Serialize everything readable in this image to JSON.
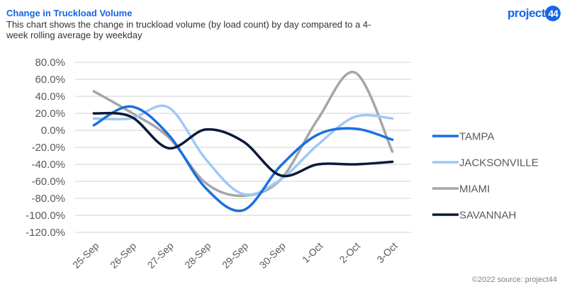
{
  "header": {
    "title": "Change in Truckload Volume",
    "subtitle": "This chart shows the change in truckload volume (by load count) by day compared to a 4-week rolling average by weekday"
  },
  "logo": {
    "text": "project",
    "badge": "44",
    "color": "#1565e6"
  },
  "footer": {
    "source": "©2022 source: project44"
  },
  "chart_data": {
    "type": "line",
    "title": "Change in Truckload Volume",
    "xlabel": "",
    "ylabel": "",
    "categories": [
      "25-Sep",
      "26-Sep",
      "27-Sep",
      "28-Sep",
      "29-Sep",
      "30-Sep",
      "1-Oct",
      "2-Oct",
      "3-Oct"
    ],
    "ylim": [
      -120,
      80
    ],
    "yticks": [
      80,
      60,
      40,
      20,
      0,
      -20,
      -40,
      -60,
      -80,
      -100,
      -120
    ],
    "ytick_labels": [
      "80.0%",
      "60.0%",
      "40.0%",
      "20.0%",
      "0.0%",
      "-20.0%",
      "-40.0%",
      "-60.0%",
      "-80.0%",
      "-100.0%",
      "-120.0%"
    ],
    "grid": true,
    "smooth": true,
    "legend_position": "right",
    "series": [
      {
        "name": "TAMPA",
        "color": "#1a6fe0",
        "values": [
          6,
          28,
          -5,
          -68,
          -94,
          -42,
          -5,
          2,
          -11
        ]
      },
      {
        "name": "JACKSONVILLE",
        "color": "#9ec9f7",
        "values": [
          14,
          14,
          27,
          -34,
          -75,
          -58,
          -17,
          16,
          14
        ]
      },
      {
        "name": "MIAMI",
        "color": "#a6a6a6",
        "values": [
          46,
          21,
          -8,
          -62,
          -77,
          -58,
          13,
          68,
          -25
        ]
      },
      {
        "name": "SAVANNAH",
        "color": "#0b1a3a",
        "values": [
          20,
          16,
          -21,
          1,
          -13,
          -53,
          -40,
          -40,
          -37
        ]
      }
    ]
  }
}
